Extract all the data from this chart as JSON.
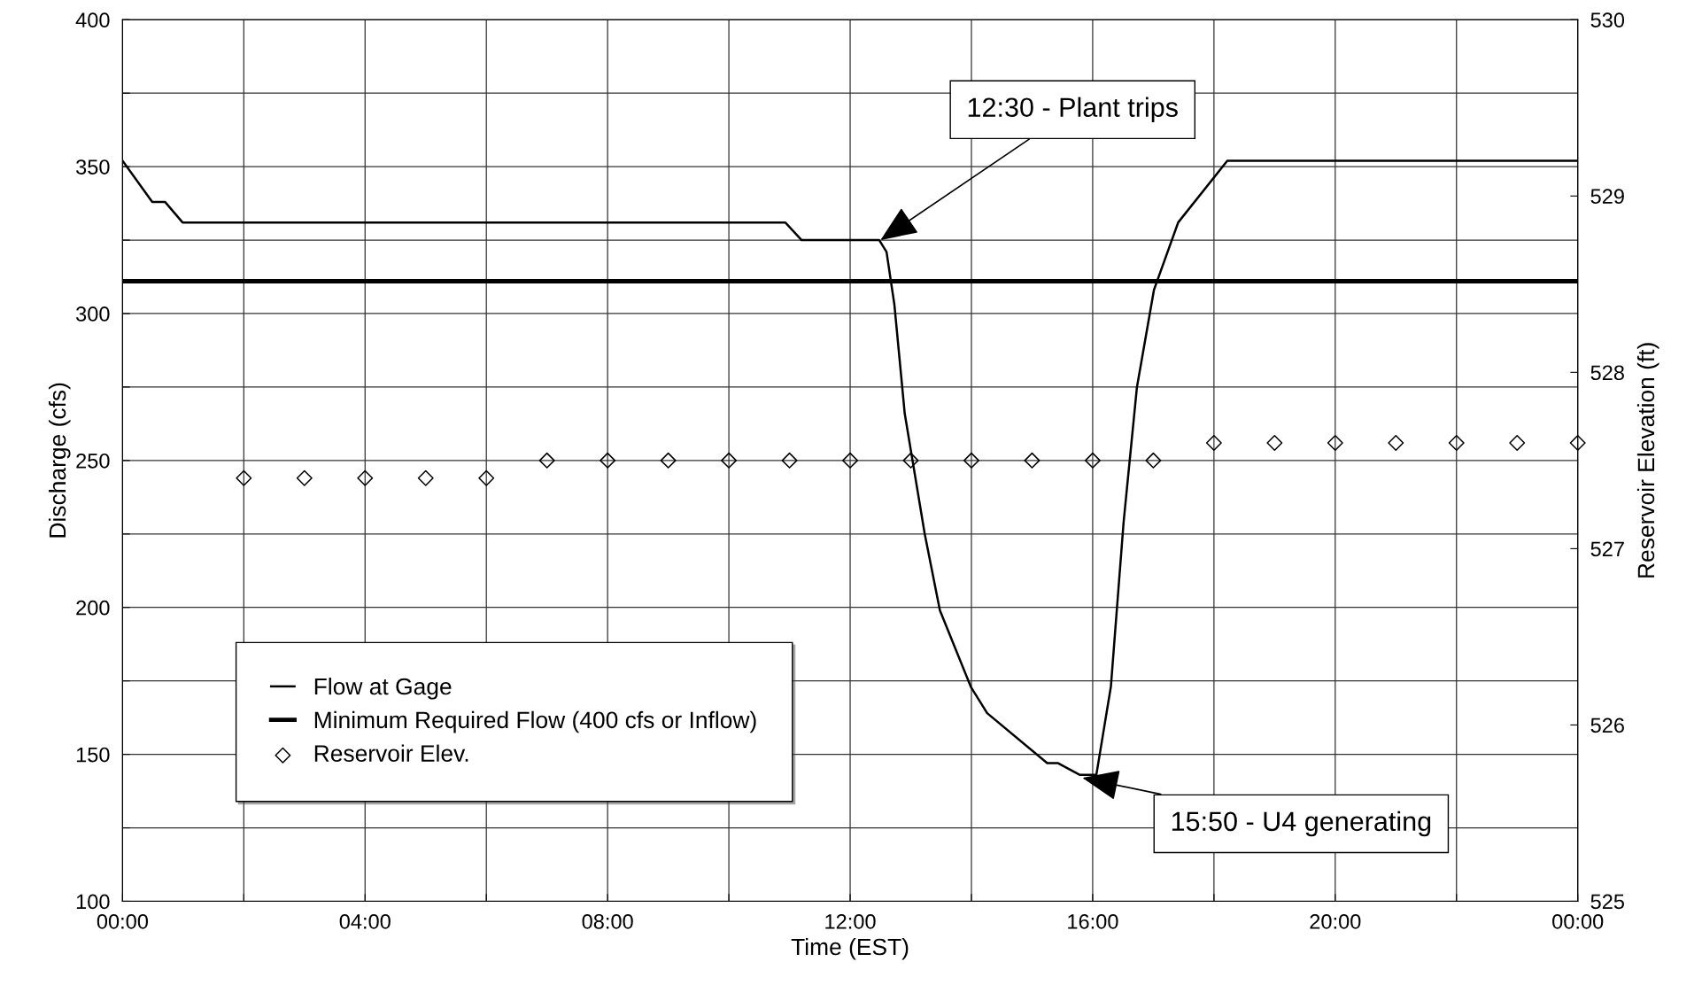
{
  "chart_data": {
    "type": "line",
    "xlabel": "Time (EST)",
    "ylabel": "Discharge (cfs)",
    "y2label": "Reservoir Elevation (ft)",
    "xlim": [
      0,
      24
    ],
    "xticks": [
      {
        "value": 0,
        "label": "00:00"
      },
      {
        "value": 2,
        "label": null
      },
      {
        "value": 4,
        "label": "04:00"
      },
      {
        "value": 6,
        "label": null
      },
      {
        "value": 8,
        "label": "08:00"
      },
      {
        "value": 10,
        "label": null
      },
      {
        "value": 12,
        "label": "12:00"
      },
      {
        "value": 14,
        "label": null
      },
      {
        "value": 16,
        "label": "16:00"
      },
      {
        "value": 18,
        "label": null
      },
      {
        "value": 20,
        "label": "20:00"
      },
      {
        "value": 22,
        "label": null
      },
      {
        "value": 24,
        "label": "00:00"
      }
    ],
    "ylim": [
      100,
      400
    ],
    "yticks": [
      100,
      {
        "value": 125,
        "label": null
      },
      150,
      {
        "value": 175,
        "label": null
      },
      200,
      {
        "value": 225,
        "label": null
      },
      250,
      {
        "value": 275,
        "label": null
      },
      300,
      {
        "value": 325,
        "label": null
      },
      350,
      {
        "value": 375,
        "label": null
      },
      400
    ],
    "y2lim": [
      525,
      530
    ],
    "y2ticks": [
      525,
      526,
      527,
      528,
      529,
      530
    ],
    "grid": true,
    "legend": "bottom left",
    "series": [
      {
        "name": "Flow at Gage",
        "color": "#000000",
        "line_style": "solid",
        "marker": "none",
        "x": [
          0,
          0.49,
          0.7,
          0.99,
          10.93,
          11.2,
          12.48,
          12.6,
          12.73,
          12.9,
          13.23,
          13.48,
          13.99,
          14.26,
          15.25,
          15.43,
          15.79,
          15.97,
          16.06,
          16.3,
          16.51,
          16.73,
          17.01,
          17.41,
          18.22,
          24
        ],
        "values": [
          352,
          338,
          338,
          331,
          331,
          325,
          325,
          321,
          303,
          266,
          225,
          199,
          173,
          164,
          147,
          147,
          143,
          143,
          143,
          173,
          229,
          275,
          308,
          331,
          352,
          352
        ]
      },
      {
        "name": "Minimum Required Flow (400 cfs or Inflow)",
        "color": "#000000",
        "line_style": "solid",
        "marker": "none",
        "x": [
          0,
          24
        ],
        "values": [
          311,
          311
        ]
      },
      {
        "name": "Reservoir Elev.",
        "type": "scatter",
        "axis": "y2",
        "color": "#000000",
        "marker": "diamond",
        "x": [
          2,
          3,
          4,
          5,
          6,
          7,
          8,
          9,
          10,
          11,
          12,
          13,
          14,
          15,
          16,
          17,
          18,
          19,
          20,
          21,
          22,
          23,
          24
        ],
        "values": [
          527.4,
          527.4,
          527.4,
          527.4,
          527.4,
          527.5,
          527.5,
          527.5,
          527.5,
          527.5,
          527.5,
          527.5,
          527.5,
          527.5,
          527.5,
          527.5,
          527.6,
          527.6,
          527.6,
          527.6,
          527.6,
          527.6,
          527.6
        ]
      }
    ],
    "annotations": [
      {
        "text": "12:30 - Plant trips",
        "x": 12.5,
        "y": 325
      },
      {
        "text": "15:50 - U4 generating",
        "x": 15.83,
        "y": 142
      }
    ]
  }
}
